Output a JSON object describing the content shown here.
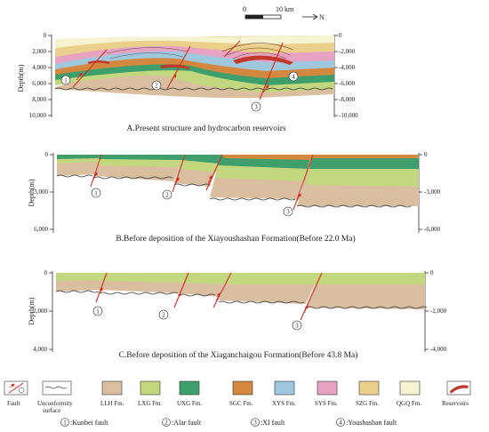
{
  "scale_bar": {
    "zero": "0",
    "end": "10 km",
    "north": "N"
  },
  "panel_a": {
    "caption": "A.Present structure and hydrocarbon reservoirs",
    "y_label": "Depth(m)",
    "left_ticks": [
      "0",
      "2,000",
      "4,000",
      "6,000",
      "8,000",
      "10,000"
    ],
    "right_ticks": [
      "0",
      "-2,000",
      "-4,000",
      "-6,000",
      "-8,000",
      "-10,000"
    ]
  },
  "panel_b": {
    "caption": "B.Before deposition of the Xiayoushashan Formation(Before 22.0 Ma)",
    "y_label": "Depth(m)",
    "left_ticks": [
      "0",
      "3,000",
      "6,000"
    ],
    "right_ticks": [
      "0",
      "-3,000",
      "-6,000"
    ]
  },
  "panel_c": {
    "caption": "C.Before deposition of the Xiaganchaigou Formation(Before 43.8 Ma)",
    "y_label": "Depth(m)",
    "left_ticks": [
      "0",
      "2,000",
      "4,000"
    ],
    "right_ticks": [
      "0",
      "-2,000",
      "-4,000"
    ]
  },
  "fault_markers": [
    "1",
    "2",
    "3",
    "4"
  ],
  "legend": {
    "items": [
      {
        "label": "Fault",
        "type": "fault"
      },
      {
        "label": "Unconformity surface",
        "line1": "Unconformity",
        "line2": "surface",
        "type": "unconformity"
      },
      {
        "label": "LLH Fm.",
        "color": "#d9bfa0"
      },
      {
        "label": "LXG Fm.",
        "color": "#c3d77f"
      },
      {
        "label": "UXG Fm.",
        "color": "#3f9f6c"
      },
      {
        "label": "SGC Fm.",
        "color": "#d4873e"
      },
      {
        "label": "XYS Fm.",
        "color": "#9fc8de"
      },
      {
        "label": "SYS Fm.",
        "color": "#e9a3c2"
      },
      {
        "label": "SZG Fm.",
        "color": "#ebd08c"
      },
      {
        "label": "QGQ Fm.",
        "color": "#f6f4d0"
      },
      {
        "label": "Reservoirs",
        "type": "reservoir",
        "color": "#c0392b"
      }
    ],
    "fault_names": [
      {
        "num": "1",
        "name": ":Kunbei fault"
      },
      {
        "num": "2",
        "name": ":Alar fault"
      },
      {
        "num": "3",
        "name": ":XI fault"
      },
      {
        "num": "4",
        "name": ":Youshashan fault"
      }
    ]
  }
}
